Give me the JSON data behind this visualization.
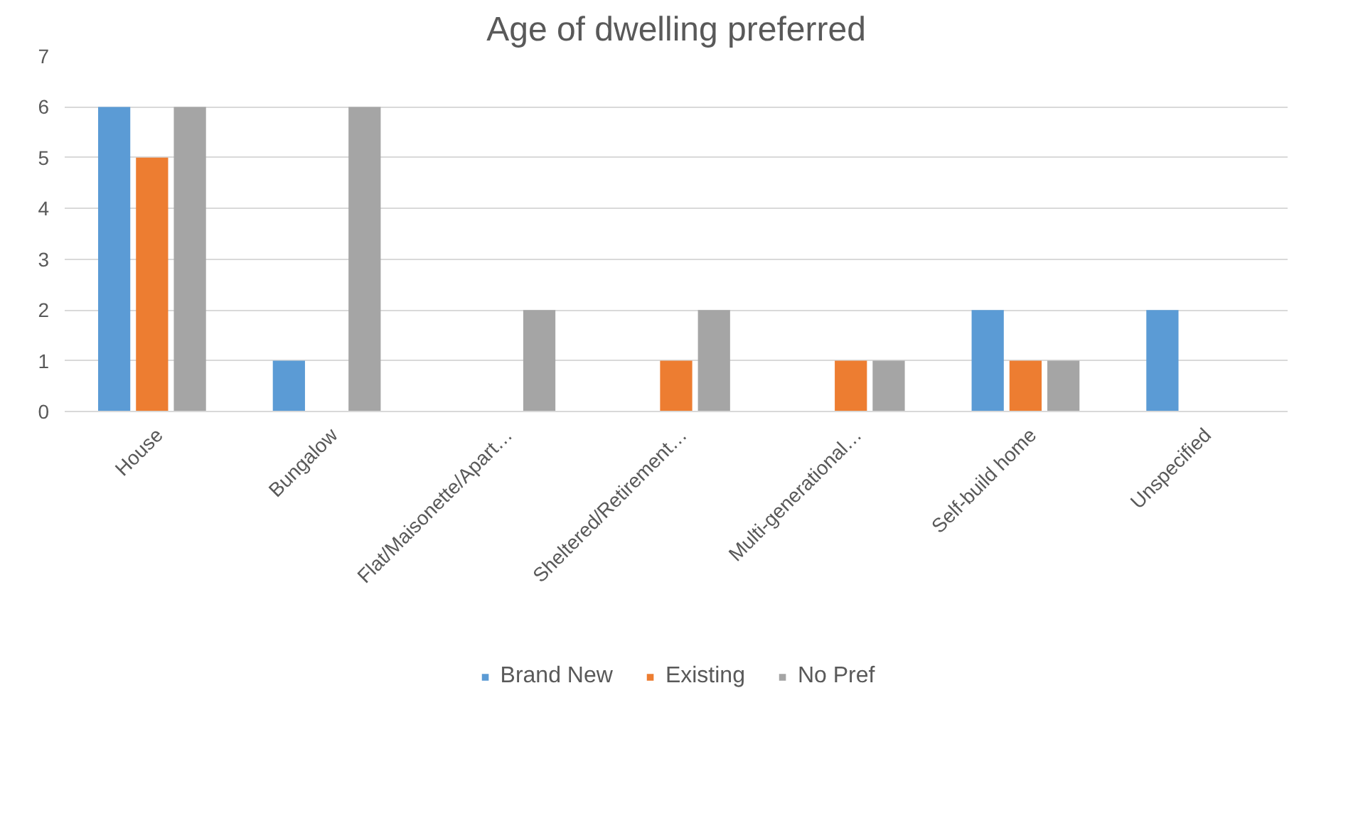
{
  "chart_data": {
    "type": "bar",
    "title": "Age of dwelling preferred",
    "categories": [
      "House",
      "Bungalow",
      "Flat/Maisonette/Apart…",
      "Sheltered/Retirement…",
      "Multi-generational…",
      "Self-build home",
      "Unspecified"
    ],
    "series": [
      {
        "name": "Brand New",
        "color": "#5b9bd5",
        "values": [
          6,
          1,
          0,
          0,
          0,
          2,
          2
        ]
      },
      {
        "name": "Existing",
        "color": "#ed7d31",
        "values": [
          5,
          0,
          0,
          1,
          1,
          1,
          0
        ]
      },
      {
        "name": "No Pref",
        "color": "#a5a5a5",
        "values": [
          6,
          6,
          2,
          2,
          1,
          1,
          0
        ]
      }
    ],
    "ylim": [
      0,
      7
    ],
    "yticks": [
      0,
      1,
      2,
      3,
      4,
      5,
      6,
      7
    ],
    "grid": "y",
    "legend": "bottom"
  }
}
